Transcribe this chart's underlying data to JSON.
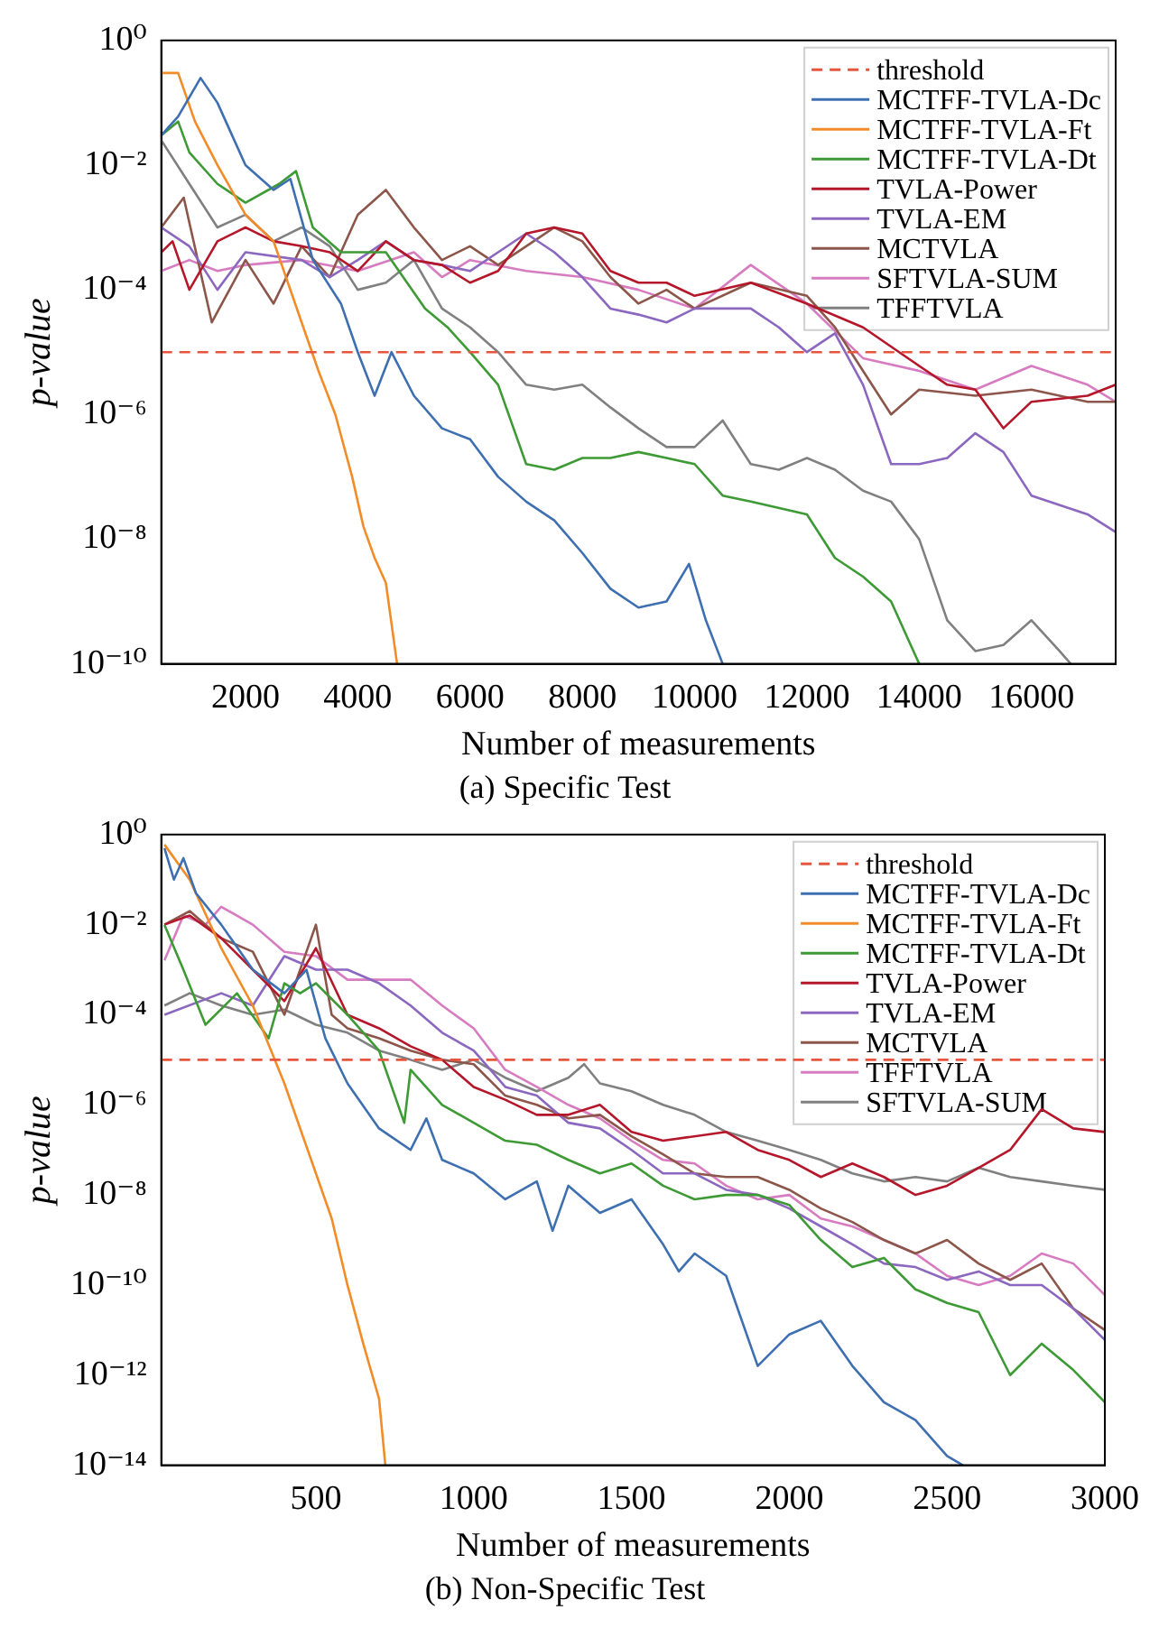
{
  "chart_data": [
    {
      "type": "line",
      "title": "(a) Specific Test",
      "xlabel": "Number of measurements",
      "ylabel": "p-value",
      "log": "y",
      "legend": "top right",
      "xlim": [
        500,
        17500
      ],
      "xticks": [
        2000,
        4000,
        6000,
        8000,
        10000,
        12000,
        14000,
        16000
      ],
      "ylim": [
        1e-10,
        1
      ],
      "yticks": [
        {
          "value": 1,
          "label": "10⁰"
        },
        {
          "value": 0.01,
          "label": "10⁻²"
        },
        {
          "value": 0.0001,
          "label": "10⁻⁴"
        },
        {
          "value": 1e-06,
          "label": "10⁻⁶"
        },
        {
          "value": 1e-08,
          "label": "10⁻⁸"
        },
        {
          "value": 1e-10,
          "label": "10⁻¹⁰"
        }
      ],
      "ref_lines": [
        {
          "axis": "y",
          "value": 1e-05,
          "label": "threshold",
          "color": "#e8553f",
          "line_style": "dashed"
        }
      ],
      "series": [
        {
          "name": "MCTFF-TVLA-Dc",
          "color": "#3e6fb0",
          "x": [
            500,
            800,
            1200,
            1500,
            2000,
            2500,
            2800,
            3200,
            3700,
            4000,
            4300,
            4600,
            5000,
            5500,
            6000,
            6500,
            7000,
            7500,
            8000,
            8500,
            9000,
            9500,
            9900,
            10200,
            10500
          ],
          "values": [
            0.03,
            0.06,
            0.25,
            0.1,
            0.01,
            0.004,
            0.006,
            0.0003,
            6e-05,
            1e-05,
            2e-06,
            1e-05,
            2e-06,
            6e-07,
            4e-07,
            1e-07,
            4e-08,
            2e-08,
            6e-09,
            1.6e-09,
            8e-10,
            1e-09,
            4e-09,
            5e-10,
            1e-10
          ]
        },
        {
          "name": "MCTFF-TVLA-Ft",
          "color": "#f28c28",
          "x": [
            500,
            800,
            1100,
            1500,
            2000,
            2500,
            3000,
            3300,
            3600,
            3900,
            4100,
            4300,
            4500,
            4700
          ],
          "values": [
            0.3,
            0.3,
            0.05,
            0.01,
            0.0016,
            0.0006,
            3e-05,
            5e-06,
            1e-06,
            1e-07,
            1.6e-08,
            5e-09,
            2e-09,
            1e-10
          ]
        },
        {
          "name": "MCTFF-TVLA-Dt",
          "color": "#3d9a35",
          "x": [
            500,
            800,
            1000,
            1500,
            2000,
            2600,
            2900,
            3200,
            3700,
            4500,
            5200,
            5600,
            6000,
            6500,
            7000,
            7500,
            8000,
            8500,
            9000,
            9500,
            10000,
            10500,
            11000,
            12000,
            12500,
            13000,
            13500,
            14000
          ],
          "values": [
            0.03,
            0.05,
            0.016,
            0.005,
            0.0025,
            0.005,
            0.008,
            0.001,
            0.0004,
            0.0004,
            5e-05,
            2.5e-05,
            1e-05,
            3e-06,
            1.6e-07,
            1.3e-07,
            2e-07,
            2e-07,
            2.5e-07,
            2e-07,
            1.6e-07,
            5e-08,
            4e-08,
            2.5e-08,
            5e-09,
            2.5e-09,
            1e-09,
            1e-10
          ]
        },
        {
          "name": "TVLA-Power",
          "color": "#b5172a",
          "x": [
            500,
            700,
            1000,
            1500,
            2000,
            2500,
            3000,
            3500,
            4000,
            4500,
            5000,
            5500,
            6000,
            6500,
            7000,
            7500,
            8000,
            8500,
            9000,
            9500,
            10000,
            11000,
            12000,
            13000,
            14000,
            14500,
            15000,
            15500,
            16000,
            17000,
            17500
          ],
          "values": [
            0.0004,
            0.0006,
            0.0001,
            0.0006,
            0.001,
            0.0006,
            0.0005,
            0.0004,
            0.0002,
            0.0006,
            0.0003,
            0.00025,
            0.00013,
            0.0002,
            0.0008,
            0.001,
            0.0008,
            0.0002,
            0.00013,
            0.00013,
            8e-05,
            0.00013,
            6e-05,
            2.5e-05,
            6e-06,
            3e-06,
            2.5e-06,
            6e-07,
            1.6e-06,
            2e-06,
            3e-06
          ]
        },
        {
          "name": "TVLA-EM",
          "color": "#8b67bf",
          "x": [
            500,
            1000,
            1500,
            2000,
            3000,
            3500,
            4000,
            4500,
            5000,
            5500,
            6000,
            6500,
            7000,
            7500,
            8000,
            8500,
            9000,
            9500,
            10000,
            11000,
            11500,
            12000,
            12500,
            13000,
            13500,
            14000,
            14500,
            15000,
            15500,
            16000,
            17000,
            17500
          ],
          "values": [
            0.001,
            0.0005,
            0.0001,
            0.0004,
            0.0003,
            0.00016,
            0.0003,
            0.0006,
            0.0003,
            0.00025,
            0.0002,
            0.0004,
            0.0008,
            0.0004,
            0.00016,
            5e-05,
            4e-05,
            3e-05,
            5e-05,
            5e-05,
            2.5e-05,
            1e-05,
            2e-05,
            3e-06,
            1.6e-07,
            1.6e-07,
            2e-07,
            5e-07,
            2.5e-07,
            5e-08,
            2.5e-08,
            1.3e-08
          ]
        },
        {
          "name": "MCTVLA",
          "color": "#8c564b",
          "x": [
            500,
            900,
            1400,
            2000,
            2500,
            3000,
            3500,
            4000,
            4500,
            5000,
            5500,
            6000,
            6500,
            7000,
            7500,
            8000,
            8500,
            9000,
            9500,
            10000,
            11000,
            12000,
            12500,
            13000,
            13500,
            14000,
            15000,
            16000,
            17000,
            17500
          ],
          "values": [
            0.001,
            0.003,
            3e-05,
            0.0003,
            6e-05,
            0.0005,
            0.00016,
            0.0016,
            0.004,
            0.001,
            0.0003,
            0.0005,
            0.00025,
            0.0005,
            0.001,
            0.0006,
            0.00016,
            6e-05,
            0.0001,
            5e-05,
            0.00013,
            8e-05,
            2.5e-05,
            5e-06,
            1e-06,
            2.5e-06,
            2e-06,
            2.5e-06,
            1.6e-06,
            1.6e-06
          ]
        },
        {
          "name": "SFTVLA-SUM",
          "color": "#d77cc0",
          "x": [
            500,
            1000,
            1500,
            2000,
            3000,
            4000,
            5000,
            5500,
            6000,
            7000,
            8000,
            9000,
            10000,
            11000,
            12000,
            13000,
            14000,
            15000,
            16000,
            17000,
            17500
          ],
          "values": [
            0.0002,
            0.0003,
            0.0002,
            0.00025,
            0.0003,
            0.0002,
            0.0004,
            0.00016,
            0.0003,
            0.0002,
            0.00016,
            0.0001,
            5e-05,
            0.00025,
            6e-05,
            8e-06,
            5e-06,
            2.5e-06,
            6e-06,
            3e-06,
            1.6e-06
          ]
        },
        {
          "name": "TFFTVLA",
          "color": "#808080",
          "x": [
            500,
            1000,
            1500,
            2000,
            2500,
            3000,
            3500,
            4000,
            4500,
            5000,
            5500,
            6000,
            6500,
            7000,
            7500,
            8000,
            8500,
            9000,
            9500,
            10000,
            10500,
            11000,
            11500,
            12000,
            12500,
            13000,
            13500,
            14000,
            14500,
            15000,
            15500,
            16000,
            16500,
            16700
          ],
          "values": [
            0.025,
            0.005,
            0.001,
            0.0016,
            0.0006,
            0.001,
            0.0005,
            0.0001,
            0.00013,
            0.0003,
            5e-05,
            2.5e-05,
            1e-05,
            3e-06,
            2.5e-06,
            3e-06,
            1.3e-06,
            6e-07,
            3e-07,
            3e-07,
            8e-07,
            1.6e-07,
            1.3e-07,
            2e-07,
            1.3e-07,
            6e-08,
            4e-08,
            1e-08,
            5e-10,
            1.6e-10,
            2e-10,
            5e-10,
            1.6e-10,
            1e-10
          ]
        }
      ]
    },
    {
      "type": "line",
      "title": "(b) Non-Specific Test",
      "xlabel": "Number of measurements",
      "ylabel": "p-value",
      "log": "y",
      "legend": "top right",
      "xlim": [
        10,
        3000
      ],
      "xticks": [
        500,
        1000,
        1500,
        2000,
        2500,
        3000
      ],
      "ylim": [
        1e-14,
        1
      ],
      "yticks": [
        {
          "value": 1,
          "label": "10⁰"
        },
        {
          "value": 0.01,
          "label": "10⁻²"
        },
        {
          "value": 0.0001,
          "label": "10⁻⁴"
        },
        {
          "value": 1e-06,
          "label": "10⁻⁶"
        },
        {
          "value": 1e-08,
          "label": "10⁻⁸"
        },
        {
          "value": 1e-10,
          "label": "10⁻¹⁰"
        },
        {
          "value": 1e-12,
          "label": "10⁻¹²"
        },
        {
          "value": 1e-14,
          "label": "10⁻¹⁴"
        }
      ],
      "ref_lines": [
        {
          "axis": "y",
          "value": 1e-05,
          "label": "threshold",
          "color": "#e8553f",
          "line_style": "dashed"
        }
      ],
      "series": [
        {
          "name": "MCTFF-TVLA-Dc",
          "color": "#3e6fb0",
          "x": [
            20,
            50,
            80,
            120,
            200,
            300,
            400,
            470,
            530,
            600,
            700,
            800,
            850,
            900,
            1000,
            1100,
            1200,
            1250,
            1300,
            1400,
            1500,
            1600,
            1650,
            1700,
            1800,
            1900,
            2000,
            2100,
            2200,
            2300,
            2400,
            2500,
            2550
          ],
          "values": [
            0.5,
            0.1,
            0.3,
            0.05,
            0.01,
            0.001,
            0.0003,
            0.001,
            3e-05,
            3e-06,
            3e-07,
            1e-07,
            5e-07,
            6e-08,
            3e-08,
            8e-09,
            2e-08,
            1.6e-09,
            1.6e-08,
            4e-09,
            8e-09,
            8e-10,
            2e-10,
            5e-10,
            1.6e-10,
            1.6e-12,
            8e-12,
            1.6e-11,
            1.6e-12,
            2.5e-13,
            1e-13,
            1.6e-14,
            1e-14
          ]
        },
        {
          "name": "MCTFF-TVLA-Ft",
          "color": "#f28c28",
          "x": [
            20,
            100,
            200,
            300,
            400,
            500,
            550,
            600,
            650,
            700,
            720
          ],
          "values": [
            0.6,
            0.1,
            0.003,
            0.00016,
            3e-06,
            3e-08,
            3e-09,
            1e-10,
            5e-12,
            3e-13,
            1e-14
          ]
        },
        {
          "name": "MCTFF-TVLA-Dt",
          "color": "#3d9a35",
          "x": [
            20,
            80,
            150,
            250,
            350,
            400,
            450,
            500,
            600,
            700,
            780,
            800,
            900,
            1000,
            1100,
            1200,
            1300,
            1400,
            1500,
            1600,
            1700,
            1800,
            1900,
            2000,
            2100,
            2200,
            2300,
            2400,
            2500,
            2600,
            2700,
            2800,
            2900,
            3000
          ],
          "values": [
            0.01,
            0.001,
            6e-05,
            0.0003,
            3e-05,
            0.0005,
            0.0003,
            0.0005,
            0.0001,
            1.6e-05,
            4e-07,
            6e-06,
            1e-06,
            4e-07,
            1.6e-07,
            1.3e-07,
            6e-08,
            3e-08,
            5e-08,
            1.6e-08,
            8e-09,
            1e-08,
            1e-08,
            6e-09,
            1e-09,
            2.5e-10,
            4e-10,
            8e-11,
            4e-11,
            2.5e-11,
            1e-12,
            5e-12,
            1.3e-12,
            2.5e-13
          ]
        },
        {
          "name": "TVLA-Power",
          "color": "#b5172a",
          "x": [
            20,
            100,
            200,
            300,
            400,
            500,
            600,
            700,
            800,
            900,
            1000,
            1100,
            1200,
            1300,
            1400,
            1500,
            1600,
            1800,
            1900,
            2000,
            2100,
            2200,
            2300,
            2400,
            2500,
            2600,
            2700,
            2800,
            2900,
            3000
          ],
          "values": [
            0.01,
            0.016,
            0.005,
            0.001,
            0.0002,
            0.003,
            0.0001,
            5e-05,
            2e-05,
            1e-05,
            2.5e-06,
            1.3e-06,
            6e-07,
            6e-07,
            1e-06,
            2.5e-07,
            1.6e-07,
            2.5e-07,
            1e-07,
            6e-08,
            2.5e-08,
            5e-08,
            2.5e-08,
            1e-08,
            1.6e-08,
            4e-08,
            1e-07,
            8e-07,
            3e-07,
            2.5e-07
          ]
        },
        {
          "name": "TVLA-EM",
          "color": "#8b67bf",
          "x": [
            20,
            200,
            300,
            400,
            500,
            600,
            700,
            800,
            900,
            1000,
            1100,
            1200,
            1300,
            1400,
            1500,
            1600,
            1700,
            1800,
            1900,
            2000,
            2100,
            2200,
            2300,
            2400,
            2500,
            2600,
            2700,
            2800,
            2900,
            3000
          ],
          "values": [
            0.0001,
            0.0003,
            0.00016,
            0.002,
            0.001,
            0.001,
            0.0005,
            0.00016,
            4e-05,
            1.6e-05,
            2.5e-06,
            1.6e-06,
            4e-07,
            3e-07,
            1e-07,
            3e-08,
            3e-08,
            1.3e-08,
            1e-08,
            5e-09,
            2e-09,
            8e-10,
            3e-10,
            2.5e-10,
            1.3e-10,
            2e-10,
            1e-10,
            1e-10,
            3e-11,
            6e-12
          ]
        },
        {
          "name": "MCTVLA",
          "color": "#8c564b",
          "x": [
            20,
            100,
            200,
            300,
            400,
            500,
            550,
            600,
            700,
            800,
            900,
            1000,
            1100,
            1200,
            1300,
            1400,
            1500,
            1600,
            1700,
            1800,
            1900,
            2000,
            2100,
            2200,
            2300,
            2400,
            2500,
            2600,
            2700,
            2800,
            2900,
            3000
          ],
          "values": [
            0.01,
            0.02,
            0.005,
            0.0025,
            0.0001,
            0.01,
            0.0001,
            5e-05,
            3e-05,
            1.6e-05,
            1e-05,
            8e-06,
            1.6e-06,
            1e-06,
            5e-07,
            6e-07,
            2e-07,
            8e-08,
            3e-08,
            2.5e-08,
            2.5e-08,
            1.3e-08,
            5e-09,
            2.5e-09,
            1e-09,
            5e-10,
            1e-09,
            3e-10,
            1.3e-10,
            3e-10,
            3e-11,
            1e-11
          ]
        },
        {
          "name": "TFFTVLA",
          "color": "#d77cc0",
          "x": [
            20,
            80,
            150,
            200,
            300,
            400,
            500,
            600,
            700,
            800,
            900,
            1000,
            1100,
            1200,
            1300,
            1400,
            1500,
            1600,
            1700,
            1800,
            1900,
            2000,
            2100,
            2200,
            2300,
            2400,
            2500,
            2600,
            2700,
            2800,
            2900,
            3000
          ],
          "values": [
            0.0016,
            0.016,
            0.01,
            0.025,
            0.01,
            0.0025,
            0.002,
            0.0006,
            0.0006,
            0.0006,
            0.00016,
            5e-05,
            6e-06,
            2.5e-06,
            1e-06,
            5e-07,
            1.6e-07,
            6e-08,
            5e-08,
            1.6e-08,
            8e-09,
            1e-08,
            3e-09,
            2e-09,
            1e-09,
            5e-10,
            1.6e-10,
            1e-10,
            1.6e-10,
            5e-10,
            3e-10,
            6e-11
          ]
        },
        {
          "name": "SFTVLA-SUM",
          "color": "#808080",
          "x": [
            20,
            100,
            200,
            300,
            400,
            500,
            600,
            700,
            800,
            900,
            1000,
            1100,
            1200,
            1300,
            1350,
            1400,
            1500,
            1600,
            1700,
            1800,
            1900,
            2000,
            2100,
            2200,
            2300,
            2400,
            2500,
            2600,
            2700,
            2800,
            2900,
            3000
          ],
          "values": [
            0.00016,
            0.0003,
            0.00016,
            0.0001,
            0.00013,
            6e-05,
            4e-05,
            1.6e-05,
            1e-05,
            6e-06,
            1e-05,
            4e-06,
            2e-06,
            4e-06,
            8e-06,
            3e-06,
            2e-06,
            1e-06,
            6e-07,
            2.5e-07,
            1.6e-07,
            1e-07,
            6e-08,
            3e-08,
            2e-08,
            2.5e-08,
            2e-08,
            4e-08,
            2.5e-08,
            2e-08,
            1.6e-08,
            1.3e-08
          ]
        }
      ]
    }
  ]
}
